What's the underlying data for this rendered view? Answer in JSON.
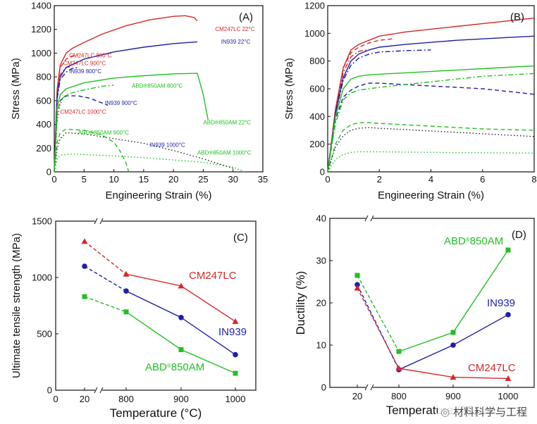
{
  "colors": {
    "red": "#d62728",
    "blue": "#1f1fa8",
    "green": "#22c022",
    "black": "#222222"
  },
  "watermark": "材料科学与工程",
  "chart_data": [
    {
      "panel": "A",
      "type": "line",
      "xlabel": "Engineering Strain (%)",
      "ylabel": "Stress (MPa)",
      "xlim": [
        0,
        35
      ],
      "ylim": [
        0,
        1400
      ],
      "xticks": [
        0,
        5,
        10,
        15,
        20,
        25,
        30,
        35
      ],
      "yticks": [
        0,
        200,
        400,
        600,
        800,
        1000,
        1200,
        1400
      ],
      "series": [
        {
          "name": "CM247LC 22°C",
          "color": "red",
          "dash": "solid",
          "x": [
            0,
            0.5,
            1,
            2,
            3,
            5,
            8,
            12,
            16,
            20,
            22,
            23.5,
            24
          ],
          "y": [
            0,
            700,
            900,
            1000,
            1040,
            1090,
            1160,
            1230,
            1280,
            1310,
            1315,
            1300,
            1270
          ]
        },
        {
          "name": "CM247LC 800°C",
          "color": "red",
          "dash": "dash",
          "x": [
            0,
            0.5,
            1,
            2,
            3,
            4
          ],
          "y": [
            0,
            700,
            880,
            950,
            975,
            985
          ]
        },
        {
          "name": "CM247LC 900°C",
          "color": "red",
          "dash": "dashdot",
          "x": [
            0,
            0.5,
            1,
            2,
            3
          ],
          "y": [
            0,
            650,
            820,
            880,
            890
          ]
        },
        {
          "name": "CM247LC 1000°C",
          "color": "red",
          "dash": "dot",
          "x": [
            0,
            0.5,
            1,
            1.5
          ],
          "y": [
            0,
            430,
            580,
            600
          ]
        },
        {
          "name": "IN939 22°C",
          "color": "blue",
          "dash": "solid",
          "x": [
            0,
            0.5,
            1,
            2,
            5,
            10,
            15,
            20,
            24
          ],
          "y": [
            0,
            650,
            800,
            880,
            950,
            1010,
            1050,
            1080,
            1095
          ]
        },
        {
          "name": "IN939 800°C",
          "color": "blue",
          "dash": "dashdot",
          "x": [
            0,
            0.5,
            1,
            2,
            3,
            4
          ],
          "y": [
            0,
            620,
            780,
            840,
            870,
            880
          ]
        },
        {
          "name": "IN939 900°C",
          "color": "blue",
          "dash": "dash",
          "x": [
            0,
            0.5,
            1,
            2,
            4,
            6,
            8,
            9
          ],
          "y": [
            0,
            500,
            600,
            640,
            640,
            620,
            580,
            560
          ]
        },
        {
          "name": "IN939 1000°C",
          "color": "black",
          "dash": "dot",
          "x": [
            0,
            0.5,
            1,
            2,
            5,
            10,
            15,
            20,
            25,
            30
          ],
          "y": [
            0,
            200,
            280,
            330,
            320,
            280,
            240,
            180,
            110,
            30
          ]
        },
        {
          "name": "ABD®850AM 22°C",
          "color": "green",
          "dash": "solid",
          "x": [
            0,
            0.5,
            1,
            2,
            5,
            10,
            15,
            20,
            24,
            25,
            25.8
          ],
          "y": [
            0,
            550,
            650,
            700,
            750,
            790,
            810,
            825,
            830,
            650,
            440
          ]
        },
        {
          "name": "ABD®850AM 800°C",
          "color": "green",
          "dash": "dashdot",
          "x": [
            0,
            0.5,
            1,
            2,
            4,
            6,
            8,
            10
          ],
          "y": [
            0,
            500,
            600,
            650,
            680,
            700,
            720,
            730
          ]
        },
        {
          "name": "ABD®850AM 900°C",
          "color": "green",
          "dash": "dash",
          "x": [
            0,
            0.5,
            1,
            2,
            5,
            8,
            10,
            11,
            12,
            12.5
          ],
          "y": [
            0,
            250,
            330,
            360,
            350,
            310,
            250,
            180,
            80,
            0
          ]
        },
        {
          "name": "ABD®850AM 1000°C",
          "color": "green",
          "dash": "dot",
          "x": [
            0,
            0.5,
            1,
            3,
            8,
            15,
            20,
            25,
            30,
            32
          ],
          "y": [
            0,
            110,
            140,
            150,
            140,
            120,
            100,
            80,
            40,
            0
          ]
        }
      ],
      "annotations": [
        {
          "text": "CM247LC 22°C",
          "color": "red",
          "x": 27,
          "y": 1185
        },
        {
          "text": "CM247LC 800°C",
          "color": "red",
          "x": 2.5,
          "y": 965
        },
        {
          "text": "CM247LC 900°C",
          "color": "red",
          "x": 1.5,
          "y": 900
        },
        {
          "text": "IN939 800°C",
          "color": "blue",
          "x": 2.5,
          "y": 830
        },
        {
          "text": "IN939 22°C",
          "color": "blue",
          "x": 28,
          "y": 1080
        },
        {
          "text": "ABD®850AM 800°C",
          "color": "green",
          "x": 13,
          "y": 710
        },
        {
          "text": "IN939 900°C",
          "color": "blue",
          "x": 8.5,
          "y": 565
        },
        {
          "text": "CM247LC 1000°C",
          "color": "red",
          "x": 1,
          "y": 490
        },
        {
          "text": "ABD®850AM 22°C",
          "color": "green",
          "x": 25,
          "y": 400
        },
        {
          "text": "ABD®850AM 900°C",
          "color": "green",
          "x": 4,
          "y": 315
        },
        {
          "text": "IN939 1000°C",
          "color": "blue",
          "x": 16,
          "y": 210
        },
        {
          "text": "ABD®850AM 1000°C",
          "color": "green",
          "x": 24,
          "y": 145
        }
      ],
      "panel_label": "(A)"
    },
    {
      "panel": "B",
      "type": "line",
      "xlabel": "Engineering Strain (%)",
      "ylabel": "Stress (MPa)",
      "xlim": [
        0,
        8
      ],
      "ylim": [
        0,
        1200
      ],
      "xticks": [
        0,
        2,
        4,
        6,
        8
      ],
      "yticks": [
        0,
        200,
        400,
        600,
        800,
        1000,
        1200
      ],
      "series": [
        {
          "name": "CM247LC 22°C",
          "color": "red",
          "dash": "solid",
          "x": [
            0,
            0.3,
            0.6,
            0.9,
            1.2,
            1.6,
            2,
            3,
            4,
            5,
            6,
            7,
            8
          ],
          "y": [
            0,
            450,
            750,
            880,
            920,
            950,
            980,
            1010,
            1030,
            1050,
            1070,
            1090,
            1110
          ]
        },
        {
          "name": "CM247LC 800°C",
          "color": "red",
          "dash": "dash",
          "x": [
            0,
            0.3,
            0.6,
            0.9,
            1.2,
            1.6,
            2,
            2.5
          ],
          "y": [
            0,
            450,
            750,
            860,
            900,
            930,
            950,
            960
          ]
        },
        {
          "name": "CM247LC 900°C",
          "color": "red",
          "dash": "dashdot",
          "x": [
            0,
            0.3,
            0.6,
            0.9,
            1.2,
            1.5
          ],
          "y": [
            0,
            420,
            720,
            830,
            870,
            880
          ]
        },
        {
          "name": "IN939 22°C",
          "color": "blue",
          "dash": "solid",
          "x": [
            0,
            0.3,
            0.6,
            0.9,
            1.2,
            1.6,
            2,
            3,
            4,
            5,
            6,
            7,
            8
          ],
          "y": [
            0,
            420,
            680,
            800,
            850,
            880,
            900,
            920,
            935,
            950,
            960,
            970,
            980
          ]
        },
        {
          "name": "IN939 800°C",
          "color": "blue",
          "dash": "dashdot",
          "x": [
            0,
            0.3,
            0.6,
            0.9,
            1.2,
            1.6,
            2,
            3,
            4
          ],
          "y": [
            0,
            420,
            660,
            770,
            820,
            850,
            865,
            875,
            880
          ]
        },
        {
          "name": "IN939 900°C",
          "color": "blue",
          "dash": "dash",
          "x": [
            0,
            0.3,
            0.6,
            0.9,
            1.2,
            1.6,
            2,
            3,
            4,
            5,
            6,
            7,
            8
          ],
          "y": [
            0,
            380,
            540,
            590,
            620,
            640,
            640,
            630,
            620,
            610,
            600,
            580,
            560
          ]
        },
        {
          "name": "ABD®850AM 22°C",
          "color": "green",
          "dash": "solid",
          "x": [
            0,
            0.3,
            0.6,
            0.9,
            1.2,
            1.6,
            2,
            3,
            4,
            5,
            6,
            7,
            8
          ],
          "y": [
            0,
            400,
            600,
            670,
            690,
            700,
            705,
            715,
            725,
            735,
            745,
            755,
            765
          ]
        },
        {
          "name": "ABD®850AM 800°C",
          "color": "green",
          "dash": "dashdot",
          "x": [
            0,
            0.3,
            0.6,
            0.9,
            1.2,
            1.6,
            2,
            3,
            4,
            5,
            6,
            7,
            8
          ],
          "y": [
            0,
            350,
            520,
            570,
            590,
            600,
            610,
            630,
            650,
            670,
            690,
            700,
            710
          ]
        },
        {
          "name": "ABD®850AM 900°C",
          "color": "green",
          "dash": "dash",
          "x": [
            0,
            0.3,
            0.6,
            0.9,
            1.2,
            1.6,
            2,
            3,
            4,
            5,
            6,
            7,
            8
          ],
          "y": [
            0,
            200,
            300,
            340,
            355,
            355,
            350,
            340,
            330,
            320,
            310,
            305,
            300
          ]
        },
        {
          "name": "IN939 1000°C",
          "color": "black",
          "dash": "dot",
          "x": [
            0,
            0.3,
            0.6,
            0.9,
            1.2,
            1.6,
            2,
            3,
            4,
            5,
            6,
            7,
            8
          ],
          "y": [
            0,
            180,
            260,
            300,
            315,
            320,
            315,
            305,
            295,
            285,
            275,
            265,
            255
          ]
        },
        {
          "name": "ABD®850AM 1000°C",
          "color": "green",
          "dash": "dot",
          "x": [
            0,
            0.3,
            0.6,
            0.9,
            1.2,
            1.6,
            2,
            3,
            4,
            5,
            6,
            7,
            8
          ],
          "y": [
            0,
            90,
            125,
            140,
            145,
            145,
            145,
            143,
            141,
            139,
            138,
            137,
            136
          ]
        }
      ],
      "panel_label": "(B)"
    },
    {
      "panel": "C",
      "type": "line",
      "xlabel": "Temperature (°C)",
      "ylabel": "Ultimate tensile strength (MPa)",
      "ylim": [
        0,
        1500
      ],
      "xticks": [
        "0",
        "20",
        "800",
        "900",
        "1000"
      ],
      "yticks": [
        0,
        500,
        1000,
        1500
      ],
      "series": [
        {
          "name": "CM247LC",
          "color": "red",
          "marker": "triangle",
          "x": [
            20,
            800,
            900,
            1000
          ],
          "y": [
            1320,
            1030,
            925,
            610
          ]
        },
        {
          "name": "IN939",
          "color": "blue",
          "marker": "circle",
          "x": [
            20,
            800,
            900,
            1000
          ],
          "y": [
            1100,
            880,
            645,
            315
          ]
        },
        {
          "name": "ABD®850AM",
          "color": "green",
          "marker": "square",
          "x": [
            20,
            800,
            900,
            1000
          ],
          "y": [
            830,
            695,
            360,
            150
          ]
        }
      ],
      "labels": [
        {
          "text": "CM247LC",
          "color": "red"
        },
        {
          "text": "IN939",
          "color": "blue"
        },
        {
          "text": "ABD®850AM",
          "color": "green"
        }
      ],
      "panel_label": "(C)"
    },
    {
      "panel": "D",
      "type": "line",
      "xlabel": "Temperature (°C)",
      "ylabel": "Ductility (%)",
      "ylim": [
        0,
        40
      ],
      "xticks": [
        "20",
        "800",
        "900",
        "1000"
      ],
      "yticks": [
        0,
        10,
        20,
        30,
        40
      ],
      "series": [
        {
          "name": "ABD®850AM",
          "color": "green",
          "marker": "square",
          "x": [
            20,
            800,
            900,
            1000
          ],
          "y": [
            26.5,
            8.5,
            13,
            32.5
          ]
        },
        {
          "name": "IN939",
          "color": "blue",
          "marker": "circle",
          "x": [
            20,
            800,
            900,
            1000
          ],
          "y": [
            24.3,
            4.2,
            10,
            17.2
          ]
        },
        {
          "name": "CM247LC",
          "color": "red",
          "marker": "triangle",
          "x": [
            20,
            800,
            900,
            1000
          ],
          "y": [
            23.5,
            4.5,
            2.4,
            2.1
          ]
        }
      ],
      "labels": [
        {
          "text": "ABD®850AM",
          "color": "green"
        },
        {
          "text": "IN939",
          "color": "blue"
        },
        {
          "text": "CM247LC",
          "color": "red"
        }
      ],
      "panel_label": "(D)"
    }
  ]
}
